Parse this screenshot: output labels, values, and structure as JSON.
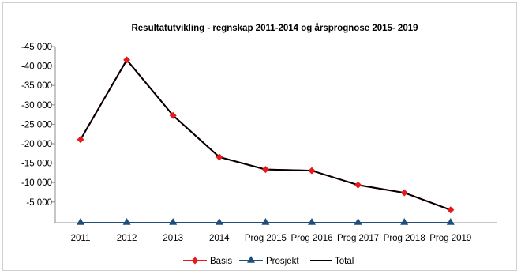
{
  "chart_data": {
    "type": "line",
    "title": "Resultatutvikling  -  regnskap 2011-2014 og årsprognose 2015- 2019",
    "xlabel": "",
    "ylabel": "",
    "categories": [
      "2011",
      "2012",
      "2013",
      "2014",
      "Prog 2015",
      "Prog 2016",
      "Prog 2017",
      "Prog 2018",
      "Prog 2019"
    ],
    "y_ticks": [
      "-45 000",
      "-40 000",
      "-35 000",
      "-30 000",
      "-25 000",
      "-20 000",
      "-15 000",
      "-10 000",
      "-5 000"
    ],
    "ylim": [
      0,
      -45000
    ],
    "y_axis_reversed": true,
    "grid": false,
    "legend_position": "bottom",
    "series": [
      {
        "name": "Basis",
        "color": "#e8191b",
        "marker": "diamond",
        "values": [
          -21400,
          -41900,
          -27600,
          -16900,
          -13700,
          -13400,
          -9700,
          -7700,
          -3300
        ]
      },
      {
        "name": "Prosjekt",
        "color": "#1f4e79",
        "marker": "triangle",
        "values": [
          0,
          0,
          0,
          0,
          0,
          0,
          0,
          0,
          0
        ]
      },
      {
        "name": "Total",
        "color": "#000000",
        "marker": "none",
        "values": [
          -21400,
          -41900,
          -27600,
          -16900,
          -13700,
          -13400,
          -9700,
          -7700,
          -3300
        ]
      }
    ]
  }
}
